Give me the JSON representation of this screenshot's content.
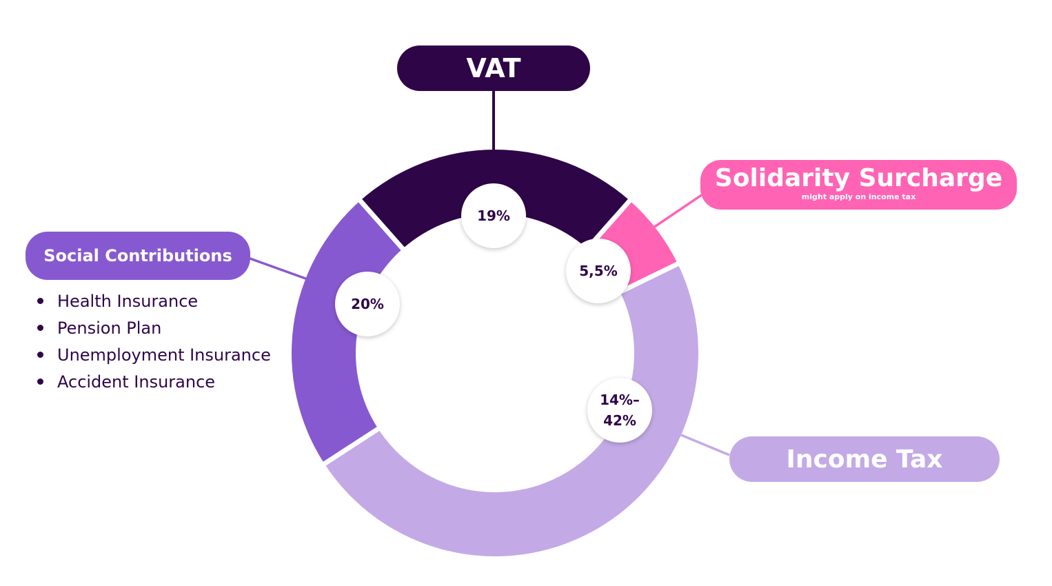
{
  "colors": {
    "vat": "#2e0648",
    "solidarity": "#ff63b4",
    "social": "#8759d0",
    "income": "#c3aae6",
    "text": "#2e0648"
  },
  "vat": {
    "title": "VAT",
    "value": "19%"
  },
  "solidarity": {
    "title": "Solidarity Surcharge",
    "subtitle": "might apply on income tax",
    "value": "5,5%"
  },
  "social": {
    "title": "Social Contributions",
    "value": "20%",
    "items": [
      "Health Insurance",
      "Pension Plan",
      "Unemployment Insurance",
      "Accident Insurance"
    ]
  },
  "income": {
    "title": "Income Tax",
    "value_line1": "14%–",
    "value_line2": "42%"
  }
}
